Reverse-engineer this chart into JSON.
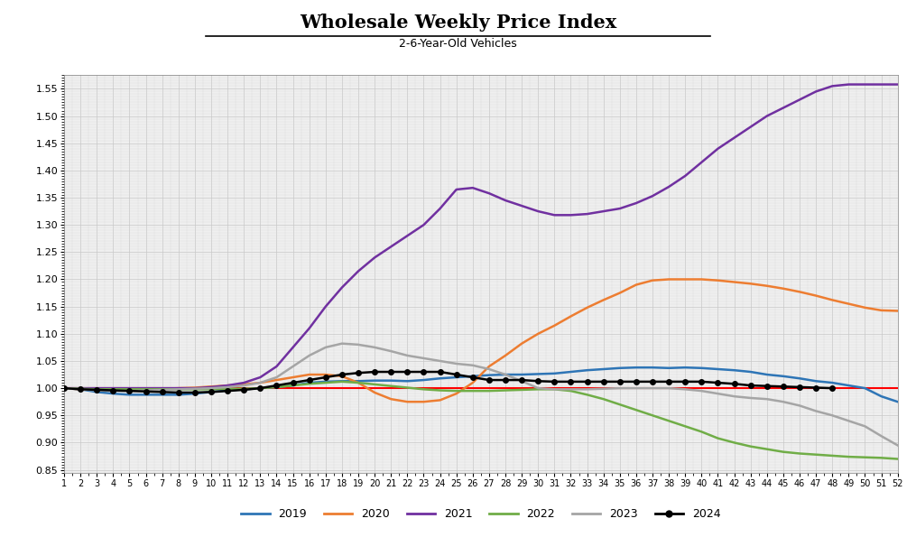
{
  "title": "Wholesale Weekly Price Index",
  "subtitle": "2-6-Year-Old Vehicles",
  "series_2019": [
    1.0,
    0.998,
    0.993,
    0.99,
    0.988,
    0.988,
    0.988,
    0.988,
    0.99,
    0.993,
    0.996,
    0.998,
    1.0,
    1.002,
    1.005,
    1.01,
    1.012,
    1.013,
    1.013,
    1.014,
    1.014,
    1.013,
    1.015,
    1.018,
    1.02,
    1.022,
    1.024,
    1.025,
    1.025,
    1.026,
    1.027,
    1.03,
    1.033,
    1.035,
    1.037,
    1.038,
    1.038,
    1.037,
    1.038,
    1.037,
    1.035,
    1.033,
    1.03,
    1.025,
    1.022,
    1.018,
    1.013,
    1.01,
    1.005,
    1.0,
    0.985,
    0.975
  ],
  "series_2020": [
    1.0,
    0.998,
    0.997,
    0.997,
    0.997,
    0.998,
    0.999,
    1.0,
    1.001,
    1.003,
    1.005,
    1.007,
    1.01,
    1.015,
    1.02,
    1.025,
    1.025,
    1.022,
    1.01,
    0.992,
    0.98,
    0.975,
    0.975,
    0.978,
    0.99,
    1.01,
    1.04,
    1.06,
    1.082,
    1.1,
    1.115,
    1.132,
    1.148,
    1.162,
    1.175,
    1.19,
    1.198,
    1.2,
    1.2,
    1.2,
    1.198,
    1.195,
    1.192,
    1.188,
    1.183,
    1.177,
    1.17,
    1.162,
    1.155,
    1.148,
    1.143,
    1.142
  ],
  "series_2021": [
    1.0,
    1.0,
    1.0,
    1.0,
    1.0,
    1.0,
    1.0,
    1.0,
    1.0,
    1.002,
    1.005,
    1.01,
    1.02,
    1.04,
    1.075,
    1.11,
    1.15,
    1.185,
    1.215,
    1.24,
    1.26,
    1.28,
    1.3,
    1.33,
    1.365,
    1.368,
    1.358,
    1.345,
    1.335,
    1.325,
    1.318,
    1.318,
    1.32,
    1.325,
    1.33,
    1.34,
    1.353,
    1.37,
    1.39,
    1.415,
    1.44,
    1.46,
    1.48,
    1.5,
    1.515,
    1.53,
    1.545,
    1.555,
    1.558,
    1.558,
    1.558,
    1.558
  ],
  "series_2022": [
    1.0,
    0.999,
    0.998,
    0.998,
    0.998,
    0.998,
    0.998,
    0.998,
    0.998,
    0.998,
    0.999,
    0.999,
    1.0,
    1.002,
    1.005,
    1.008,
    1.01,
    1.012,
    1.01,
    1.007,
    1.004,
    1.001,
    0.998,
    0.996,
    0.995,
    0.995,
    0.995,
    0.996,
    0.997,
    0.998,
    0.998,
    0.995,
    0.988,
    0.98,
    0.97,
    0.96,
    0.95,
    0.94,
    0.93,
    0.92,
    0.908,
    0.9,
    0.893,
    0.888,
    0.883,
    0.88,
    0.878,
    0.876,
    0.874,
    0.873,
    0.872,
    0.87
  ],
  "series_2023": [
    1.0,
    0.998,
    0.996,
    0.995,
    0.995,
    0.996,
    0.997,
    0.998,
    0.999,
    1.0,
    1.002,
    1.005,
    1.01,
    1.02,
    1.04,
    1.06,
    1.075,
    1.082,
    1.08,
    1.075,
    1.068,
    1.06,
    1.055,
    1.05,
    1.045,
    1.042,
    1.035,
    1.025,
    1.013,
    1.0,
    0.998,
    0.998,
    0.998,
    0.999,
    1.0,
    1.0,
    1.0,
    1.0,
    0.998,
    0.995,
    0.99,
    0.985,
    0.982,
    0.98,
    0.975,
    0.968,
    0.958,
    0.95,
    0.94,
    0.93,
    0.912,
    0.895
  ],
  "series_2024": [
    1.0,
    0.998,
    0.997,
    0.996,
    0.995,
    0.994,
    0.993,
    0.992,
    0.992,
    0.993,
    0.995,
    0.997,
    1.0,
    1.005,
    1.01,
    1.015,
    1.02,
    1.025,
    1.028,
    1.03,
    1.03,
    1.03,
    1.03,
    1.03,
    1.025,
    1.02,
    1.015,
    1.015,
    1.015,
    1.013,
    1.012,
    1.012,
    1.012,
    1.012,
    1.012,
    1.012,
    1.012,
    1.012,
    1.012,
    1.012,
    1.01,
    1.008,
    1.005,
    1.004,
    1.003,
    1.002,
    1.001,
    1.0
  ],
  "color_2019": "#2E75B6",
  "color_2020": "#ED7D31",
  "color_2021": "#7030A0",
  "color_2022": "#70AD47",
  "color_2023": "#A5A5A5",
  "color_2024": "#000000",
  "color_baseline": "#FF0000",
  "bg_axes": "#EFEFEF",
  "ylim_low": 0.845,
  "ylim_high": 1.575,
  "yticks": [
    0.85,
    0.9,
    0.95,
    1.0,
    1.05,
    1.1,
    1.15,
    1.2,
    1.25,
    1.3,
    1.35,
    1.4,
    1.45,
    1.5,
    1.55
  ]
}
